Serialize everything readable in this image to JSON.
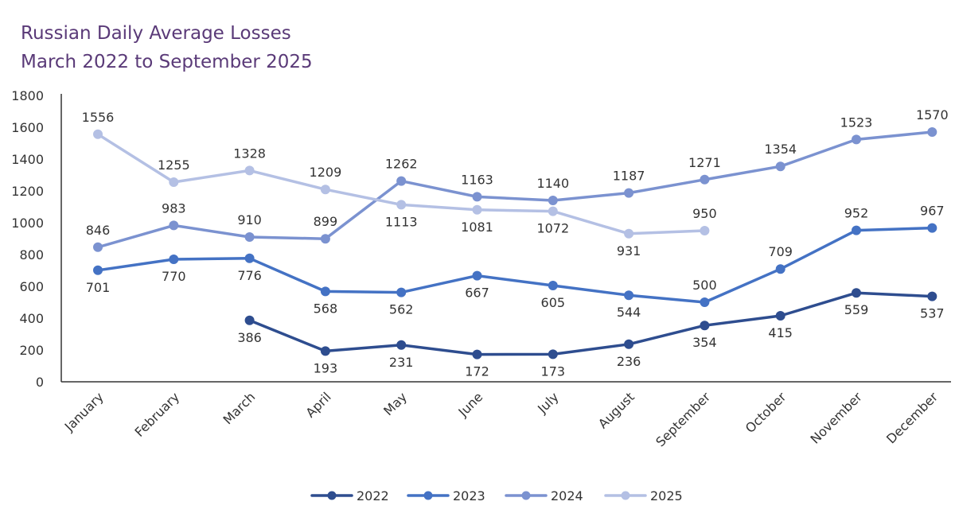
{
  "chart_data": {
    "type": "line",
    "title_lines": [
      "Russian Daily Average Losses",
      "March 2022 to September 2025"
    ],
    "categories": [
      "January",
      "February",
      "March",
      "April",
      "May",
      "June",
      "July",
      "August",
      "September",
      "October",
      "November",
      "December"
    ],
    "ylim": [
      0,
      1800
    ],
    "yticks": [
      0,
      200,
      400,
      600,
      800,
      1000,
      1200,
      1400,
      1600,
      1800
    ],
    "grid": false,
    "legend_position": "bottom",
    "series": [
      {
        "name": "2022",
        "color": "#2e4d8f",
        "values": [
          null,
          null,
          386,
          193,
          231,
          172,
          173,
          236,
          354,
          415,
          559,
          537
        ],
        "label_pos": [
          "",
          "",
          "below",
          "below",
          "below",
          "below",
          "below",
          "below",
          "below",
          "below",
          "below",
          "below"
        ]
      },
      {
        "name": "2023",
        "color": "#4472c4",
        "values": [
          701,
          770,
          776,
          568,
          562,
          667,
          605,
          544,
          500,
          709,
          952,
          967
        ],
        "label_pos": [
          "below",
          "below",
          "below",
          "below",
          "below",
          "below",
          "below",
          "below",
          "above",
          "above",
          "above",
          "above"
        ]
      },
      {
        "name": "2024",
        "color": "#7b92d0",
        "values": [
          846,
          983,
          910,
          899,
          1262,
          1163,
          1140,
          1187,
          1271,
          1354,
          1523,
          1570
        ],
        "label_pos": [
          "above",
          "above",
          "above",
          "above",
          "above",
          "above",
          "above",
          "above",
          "above",
          "above",
          "above",
          "above"
        ]
      },
      {
        "name": "2025",
        "color": "#b4c0e4",
        "values": [
          1556,
          1255,
          1328,
          1209,
          1113,
          1081,
          1072,
          931,
          950,
          null,
          null,
          null
        ],
        "label_pos": [
          "above",
          "above",
          "above",
          "above",
          "below",
          "below",
          "below",
          "below",
          "above",
          "",
          "",
          ""
        ]
      }
    ]
  }
}
